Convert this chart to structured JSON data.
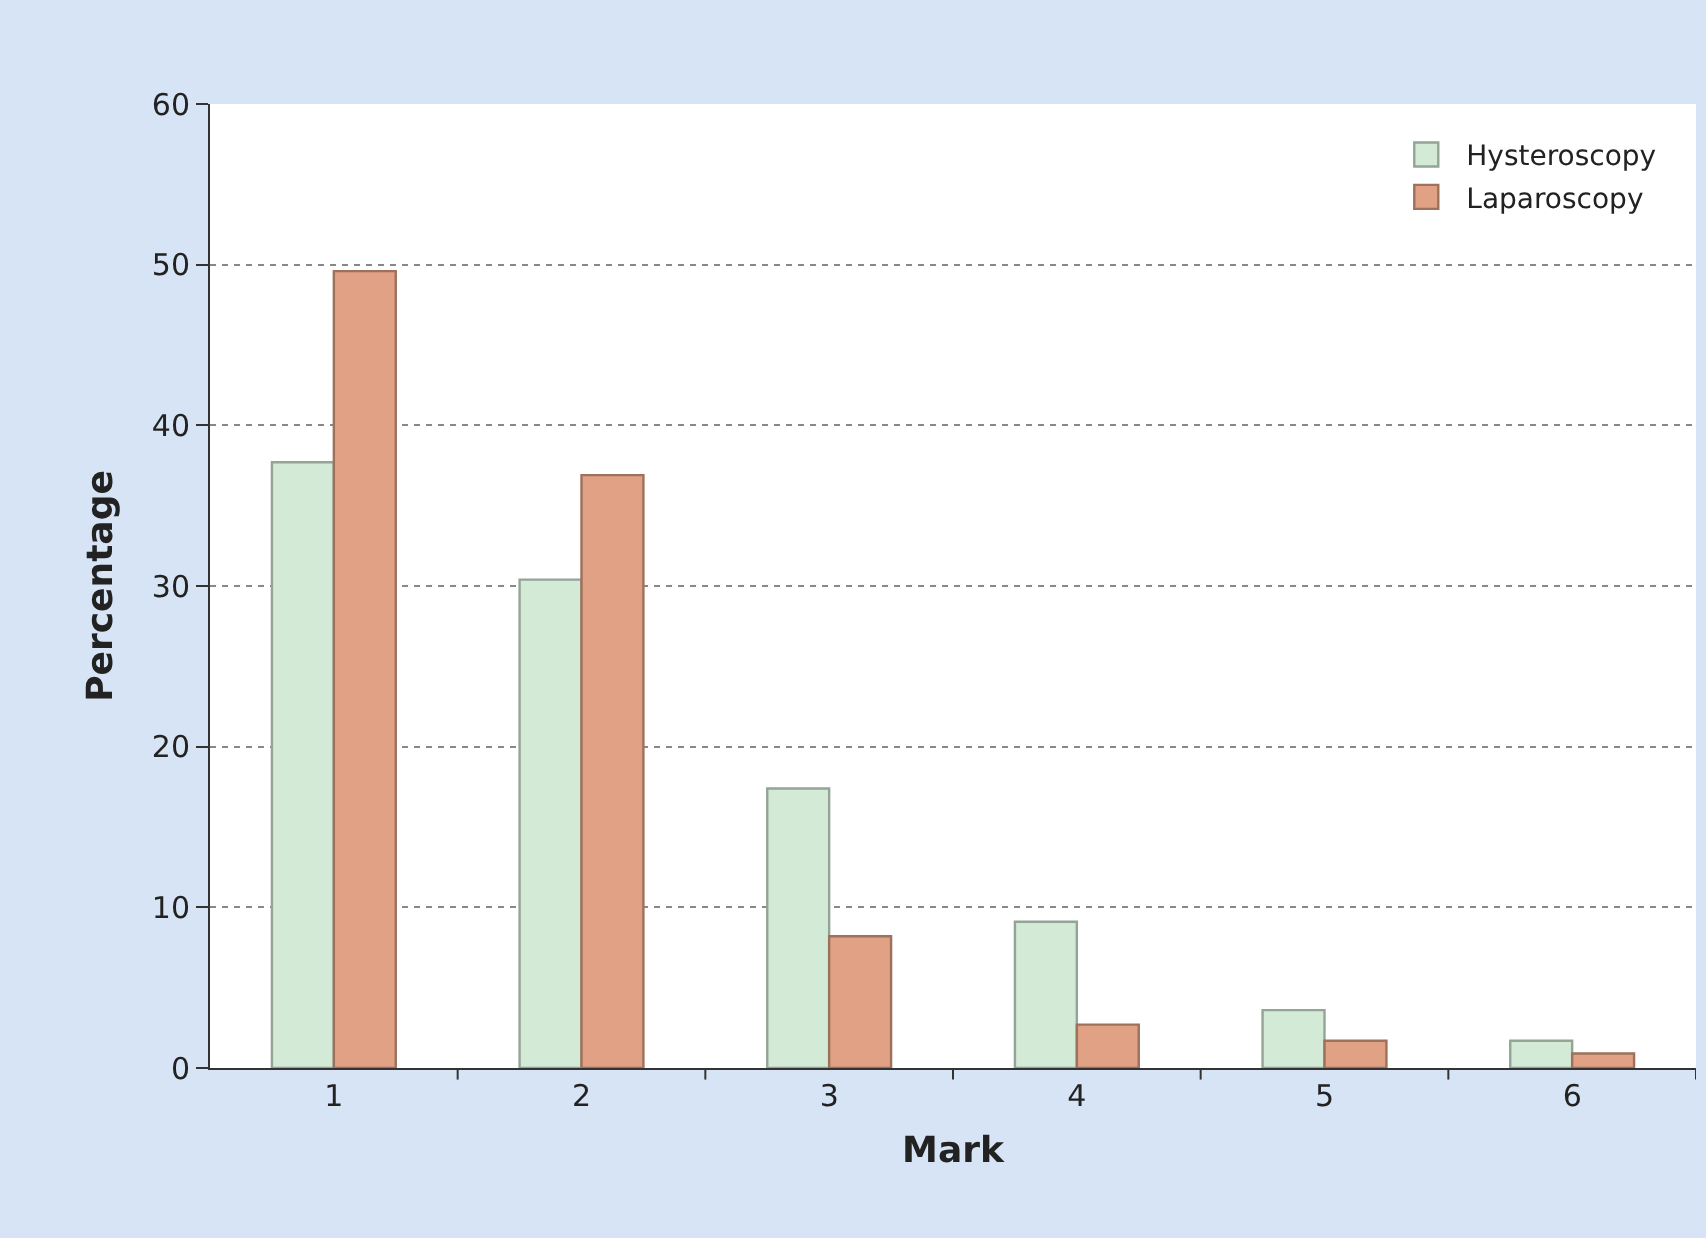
{
  "chart_data": {
    "type": "bar",
    "xlabel": "Mark",
    "ylabel": "Percentage",
    "categories": [
      "1",
      "2",
      "3",
      "4",
      "5",
      "6"
    ],
    "series": [
      {
        "name": "Hysteroscopy",
        "color": "#d3ead6",
        "values": [
          37.7,
          30.4,
          17.4,
          9.1,
          3.6,
          1.7
        ]
      },
      {
        "name": "Laparoscopy",
        "color": "#e0a184",
        "values": [
          49.6,
          36.9,
          8.2,
          2.7,
          1.7,
          0.9
        ]
      }
    ],
    "ylim": [
      0,
      60
    ],
    "yticks": [
      0,
      10,
      20,
      30,
      40,
      50,
      60
    ],
    "grid": "y",
    "legend": "top right"
  }
}
